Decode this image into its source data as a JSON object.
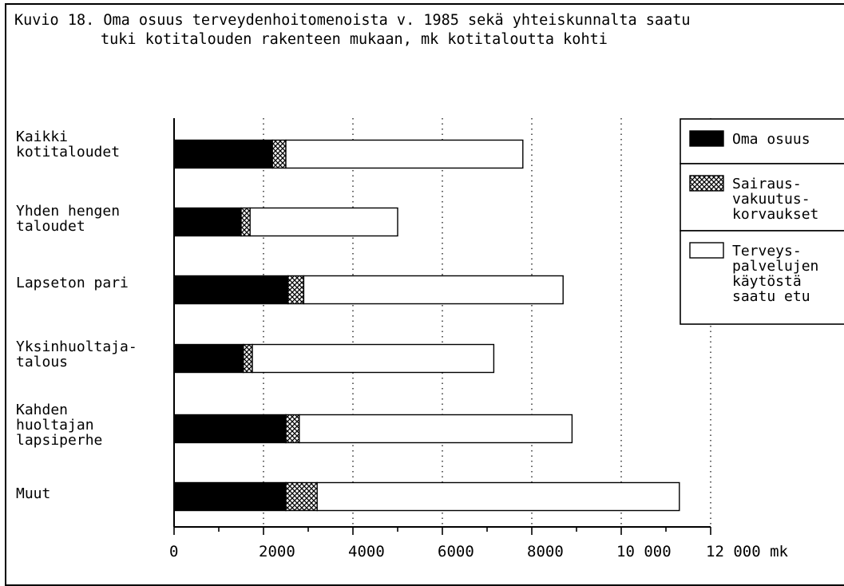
{
  "title": {
    "line1": "Kuvio 18. Oma osuus terveydenhoitomenoista v. 1985 sekä yhteiskunnalta saatu",
    "line2": "tuki kotitalouden rakenteen mukaan, mk kotitaloutta kohti"
  },
  "chart_data": {
    "type": "bar",
    "orientation": "horizontal",
    "stacked": true,
    "categories": [
      [
        "Kaikki",
        "kotitaloudet"
      ],
      [
        "Yhden hengen",
        "taloudet"
      ],
      [
        "Lapseton pari"
      ],
      [
        "Yksinhuoltaja-",
        "talous"
      ],
      [
        "Kahden",
        "huoltajan",
        "lapsiperhe"
      ],
      [
        "Muut"
      ]
    ],
    "series": [
      {
        "name": [
          "Oma osuus"
        ],
        "pattern": "solid",
        "values": [
          2200,
          1500,
          2550,
          1550,
          2500,
          2500
        ]
      },
      {
        "name": [
          "Sairaus-",
          "vakuutus-",
          "korvaukset"
        ],
        "pattern": "crosshatch",
        "values": [
          300,
          200,
          350,
          200,
          300,
          700
        ]
      },
      {
        "name": [
          "Terveys-",
          "palvelujen",
          "käytöstä",
          "saatu etu"
        ],
        "pattern": "empty",
        "values": [
          5300,
          3300,
          5800,
          5400,
          6100,
          8100
        ]
      }
    ],
    "xlim": [
      0,
      12000
    ],
    "xticks": [
      {
        "value": 0,
        "label": "0"
      },
      {
        "value": 2000,
        "label": "2000"
      },
      {
        "value": 4000,
        "label": "4000"
      },
      {
        "value": 6000,
        "label": "6000"
      },
      {
        "value": 8000,
        "label": "8000"
      },
      {
        "value": 10000,
        "label": "10 000"
      },
      {
        "value": 12000,
        "label": "12 000 mk"
      }
    ],
    "grid": "vertical dotted",
    "legend_position": "right",
    "colors": {
      "bar_fill": "#000000",
      "outline": "#000000",
      "background": "#ffffff"
    }
  }
}
